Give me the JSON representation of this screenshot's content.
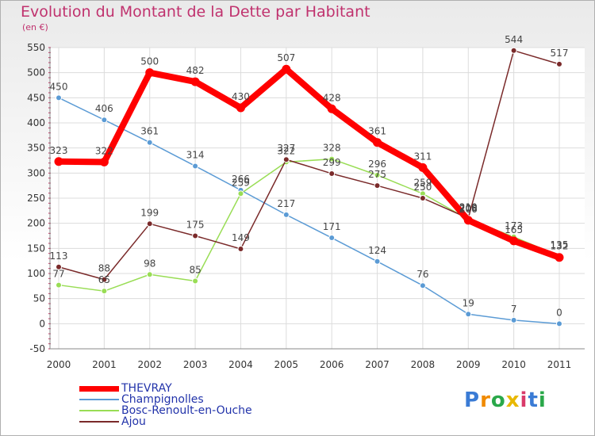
{
  "chart_data": {
    "type": "line",
    "title": "Evolution du Montant de la Dette par Habitant",
    "subtitle": "(en €)",
    "x": [
      2000,
      2001,
      2002,
      2003,
      2004,
      2005,
      2006,
      2007,
      2008,
      2009,
      2010,
      2011
    ],
    "ylim": [
      -50,
      550
    ],
    "yticks": [
      -50,
      0,
      50,
      100,
      150,
      200,
      250,
      300,
      350,
      400,
      450,
      500,
      550
    ],
    "grid": true,
    "legend_position": "bottom-left",
    "series": [
      {
        "name": "THEVRAY",
        "color": "#ff0000",
        "values": [
          323,
          322,
          500,
          482,
          430,
          507,
          428,
          361,
          311,
          206,
          165,
          132
        ]
      },
      {
        "name": "Champignolles",
        "color": "#5b9bd5",
        "values": [
          450,
          406,
          361,
          314,
          266,
          217,
          171,
          124,
          76,
          19,
          7,
          0
        ]
      },
      {
        "name": "Bosc-Renoult-en-Ouche",
        "color": "#99dd55",
        "values": [
          77,
          65,
          98,
          85,
          259,
          322,
          328,
          296,
          259,
          208,
          173,
          135
        ]
      },
      {
        "name": "Ajou",
        "color": "#7a2a2a",
        "values": [
          113,
          88,
          199,
          175,
          149,
          327,
          299,
          275,
          250,
          210,
          544,
          517
        ]
      }
    ]
  },
  "brand": {
    "letters": [
      "P",
      "r",
      "o",
      "x",
      "i",
      "t",
      "i"
    ],
    "text": "Proxiti"
  }
}
